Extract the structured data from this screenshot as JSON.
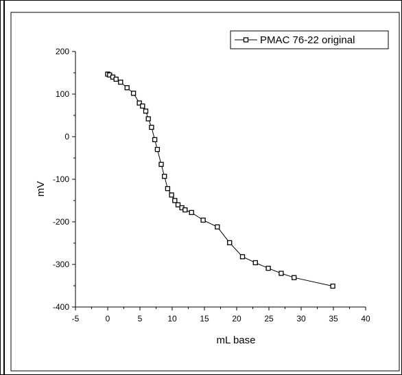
{
  "chart_data": {
    "type": "line",
    "xlabel": "mL base",
    "ylabel": "mV",
    "xlim": [
      -5,
      40
    ],
    "ylim": [
      -400,
      200
    ],
    "xticks": [
      -5,
      0,
      5,
      10,
      15,
      20,
      25,
      30,
      35,
      40
    ],
    "yticks": [
      -400,
      -300,
      -200,
      -100,
      0,
      100,
      200
    ],
    "grid": false,
    "legend_position": "top-right",
    "series": [
      {
        "name": "PMAC 76-22 original",
        "color": "#000000",
        "marker": "square",
        "x": [
          0.0,
          0.3,
          0.8,
          1.3,
          2.0,
          3.0,
          4.0,
          4.9,
          5.4,
          5.9,
          6.3,
          6.8,
          7.3,
          7.7,
          8.3,
          8.8,
          9.3,
          9.9,
          10.4,
          10.9,
          11.5,
          12.0,
          13.0,
          14.8,
          17.0,
          18.9,
          20.9,
          22.9,
          24.9,
          26.9,
          28.9,
          34.9
        ],
        "y": [
          147,
          145,
          140,
          135,
          128,
          115,
          102,
          79,
          72,
          60,
          42,
          22,
          -7,
          -30,
          -65,
          -93,
          -122,
          -137,
          -150,
          -160,
          -167,
          -172,
          -178,
          -196,
          -212,
          -249,
          -282,
          -296,
          -309,
          -321,
          -331,
          -351
        ]
      }
    ]
  }
}
